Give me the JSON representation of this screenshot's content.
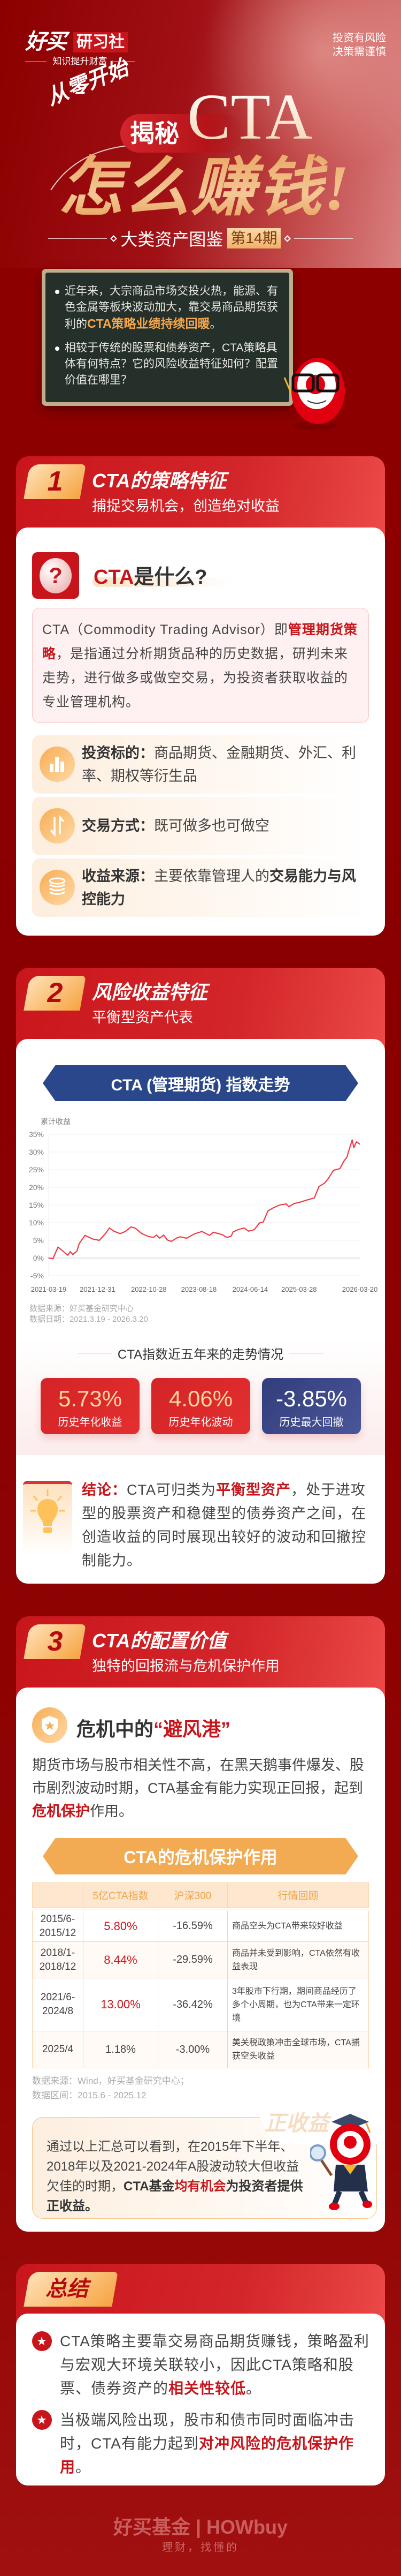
{
  "header": {
    "logo_main": "好买",
    "logo_sub": "研习社",
    "slogan": "知识提升财富",
    "disclaimer": [
      "投资有风险",
      "决策需谨慎"
    ],
    "kicker": "从零开始",
    "reveal": "揭秘",
    "title_cta": "CTA",
    "title_main": "怎么赚钱!",
    "series": "大类资产图鉴",
    "issue": "第14期"
  },
  "intro": {
    "b1": [
      "近年来，大宗商品市场交投火热，能源、有色金属等板块波动加大，靠交易商品期货获利的",
      "CTA策略业绩持续回暖",
      "。"
    ],
    "b2": "相较于传统的股票和债券资产，CTA策略具体有何特点？它的风险收益特征如何？配置价值在哪里？"
  },
  "s1": {
    "num": "1",
    "title": "CTA的策略特征",
    "subtitle": "捕捉交易机会，创造绝对收益",
    "what_a": "CTA",
    "what_b": "是什么?",
    "definition": [
      "CTA（Commodity Trading Advisor）即",
      "管理期货策略",
      "，是指通过分析期货品种的历史数据，研判未来走势，进行做多或做空交易，为投资者获取收益的专业管理机构。"
    ],
    "features": [
      {
        "icon": "bar-chart-icon",
        "label": "投资标的：",
        "text": "商品期货、金融期货、外汇、利率、期权等衍生品"
      },
      {
        "icon": "long-short-arrows-icon",
        "label": "交易方式：",
        "text": "既可做多也可做空"
      },
      {
        "icon": "coin-stack-icon",
        "label": "收益来源：",
        "text": "主要依靠管理人的",
        "bold": "交易能力与风控能力"
      }
    ]
  },
  "s2": {
    "num": "2",
    "title": "风险收益特征",
    "subtitle": "平衡型资产代表",
    "banner": "CTA (管理期货) 指数走势",
    "source": "数据来源：好买基金研究中心",
    "period": "数据日期：2021.3.19 - 2026.3.20",
    "trend_title": "CTA指数近五年来的走势情况",
    "stats": [
      {
        "value": "5.73%",
        "label": "历史年化收益"
      },
      {
        "value": "4.06%",
        "label": "历史年化波动"
      },
      {
        "value": "-3.85%",
        "label": "历史最大回撤"
      }
    ],
    "conclusion": [
      "结论：",
      "CTA可归类为",
      "平衡型资产",
      "，处于进攻型的股票资产和稳健型的债券资产之间，在创造收益的同时展现出较好的波动和回撤控制能力。"
    ]
  },
  "chart_data": {
    "type": "line",
    "ylabel": "累计收益",
    "ylim": [
      -5,
      35
    ],
    "yticks": [
      "35%",
      "30%",
      "25%",
      "20%",
      "15%",
      "10%",
      "5%",
      "0%",
      "-5%"
    ],
    "xticks": [
      "2021-03-19",
      "2021-12-31",
      "2022-10-28",
      "2023-08-18",
      "2024-06-14",
      "2025-03-28",
      "2026-03-20"
    ],
    "grid": true,
    "color": "#ef3a45",
    "points": [
      [
        "2021-03-19",
        0
      ],
      [
        "2021-04-13",
        -0.2
      ],
      [
        "2021-05-13",
        3.1
      ],
      [
        "2021-06-02",
        2.3
      ],
      [
        "2021-07-09",
        0.8
      ],
      [
        "2021-07-24",
        1.8
      ],
      [
        "2021-08-08",
        1.0
      ],
      [
        "2021-08-31",
        1.9
      ],
      [
        "2021-09-15",
        4.1
      ],
      [
        "2021-10-18",
        6.4
      ],
      [
        "2021-12-02",
        5.4
      ],
      [
        "2022-01-10",
        5.0
      ],
      [
        "2022-02-15",
        6.9
      ],
      [
        "2022-03-11",
        8.5
      ],
      [
        "2022-04-05",
        7.6
      ],
      [
        "2022-05-13",
        6.9
      ],
      [
        "2022-06-12",
        7.5
      ],
      [
        "2022-07-16",
        8.8
      ],
      [
        "2022-08-11",
        8.4
      ],
      [
        "2022-09-17",
        6.9
      ],
      [
        "2022-10-25",
        6.1
      ],
      [
        "2022-11-24",
        5.8
      ],
      [
        "2022-12-12",
        6.5
      ],
      [
        "2022-12-31",
        5.6
      ],
      [
        "2023-01-23",
        6.5
      ],
      [
        "2023-02-14",
        5.1
      ],
      [
        "2023-03-09",
        4.7
      ],
      [
        "2023-04-08",
        5.6
      ],
      [
        "2023-04-30",
        6.0
      ],
      [
        "2023-06-07",
        5.6
      ],
      [
        "2023-07-22",
        6.8
      ],
      [
        "2023-09-05",
        7.5
      ],
      [
        "2023-10-20",
        6.4
      ],
      [
        "2023-11-11",
        7.3
      ],
      [
        "2024-01-03",
        6.6
      ],
      [
        "2024-01-30",
        5.8
      ],
      [
        "2024-02-24",
        6.2
      ],
      [
        "2024-03-06",
        7.4
      ],
      [
        "2024-04-09",
        8.1
      ],
      [
        "2024-05-09",
        8.5
      ],
      [
        "2024-06-04",
        7.6
      ],
      [
        "2024-07-08",
        8.0
      ],
      [
        "2024-08-07",
        9.9
      ],
      [
        "2024-08-30",
        10.2
      ],
      [
        "2024-09-26",
        13.3
      ],
      [
        "2024-11-01",
        14.3
      ],
      [
        "2024-12-05",
        15.0
      ],
      [
        "2025-01-12",
        15.3
      ],
      [
        "2025-01-27",
        14.5
      ],
      [
        "2025-02-26",
        15.4
      ],
      [
        "2025-04-04",
        15.8
      ],
      [
        "2025-05-12",
        16.4
      ],
      [
        "2025-06-26",
        17.0
      ],
      [
        "2025-07-23",
        20.2
      ],
      [
        "2025-08-25",
        21.2
      ],
      [
        "2025-09-16",
        22.5
      ],
      [
        "2025-10-16",
        24.8
      ],
      [
        "2025-11-23",
        25.3
      ],
      [
        "2025-12-15",
        27.3
      ],
      [
        "2026-01-04",
        28.6
      ],
      [
        "2026-01-19",
        31.1
      ],
      [
        "2026-02-03",
        33.4
      ],
      [
        "2026-02-13",
        31.2
      ],
      [
        "2026-02-28",
        32.9
      ],
      [
        "2026-03-20",
        32.2
      ]
    ]
  },
  "s3": {
    "num": "3",
    "title": "CTA的配置价值",
    "subtitle": "独特的回报流与危机保护作用",
    "haven_a": "危机中的",
    "haven_b": "“避风港”",
    "haven_p": [
      "期货市场与股市相关性不高，在黑天鹅事件爆发、股市剧烈波动时期，CTA基金有能力实现正回报，起到",
      "危机保护",
      "作用。"
    ],
    "banner": "CTA的危机保护作用",
    "table": {
      "headers": [
        "",
        "5亿CTA指数",
        "沪深300",
        "行情回顾"
      ],
      "rows": [
        [
          "2015/6-2015/12",
          "5.80%",
          "-16.59%",
          "商品空头为CTA带来较好收益"
        ],
        [
          "2018/1-2018/12",
          "8.44%",
          "-29.59%",
          "商品并未受到影响，CTA依然有收益表现"
        ],
        [
          "2021/6-2024/8",
          "13.00%",
          "-36.42%",
          "3年股市下行期，期间商品经历了多个小周期，也为CTA带来一定环境"
        ],
        [
          "2025/4",
          "1.18%",
          "-3.00%",
          "美关税政策冲击全球市场，CTA捕获空头收益"
        ]
      ]
    },
    "source": "数据来源：Wind，好买基金研究中心；",
    "period": "数据区间：2015.6 - 2025.12",
    "watermark": "正收益",
    "summary": [
      "通过以上汇总可以看到，在2015年下半年、2018年以及2021-2024年A股波动较大但收益欠佳的时期，",
      "CTA基金",
      "均有机会",
      "为投资者提供正收益。"
    ]
  },
  "s4": {
    "title": "总结",
    "items": [
      [
        "CTA策略主要靠交易商品期货赚钱，策略盈利与宏观大环境关联较小，因此CTA策略和股票、债券资产的",
        "相关性较低",
        "。"
      ],
      [
        "当极端风险出现，股市和债市同时面临冲击时，CTA有能力起到",
        "对冲风险的危机保护作用",
        "。"
      ]
    ]
  },
  "footer": {
    "logo": "好买基金 | HOWbuy",
    "slogan": "理财，找懂的"
  },
  "colors": {
    "brand_red": "#c8151b",
    "dark_red": "#8b0000",
    "gold": "#f4a64d",
    "navy": "#2b478b",
    "orange": "#f2ab52"
  }
}
